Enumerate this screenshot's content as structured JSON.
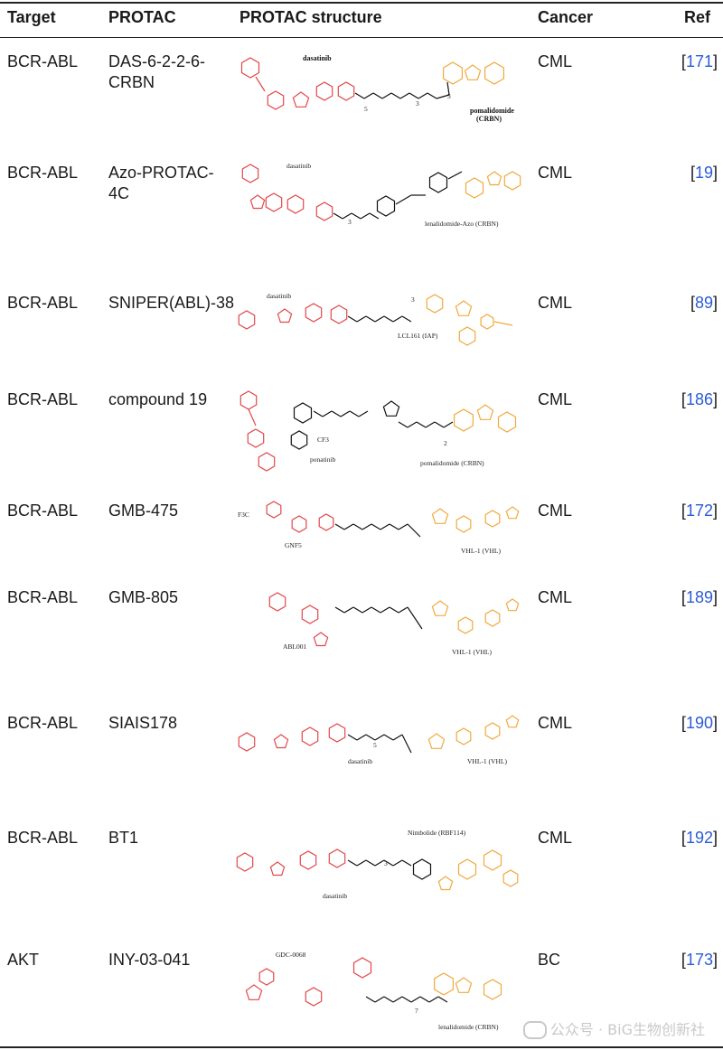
{
  "columns": {
    "target": "Target",
    "protac": "PROTAC",
    "structure": "PROTAC structure",
    "cancer": "Cancer",
    "ref": "Ref"
  },
  "rows": [
    {
      "target": "BCR-ABL",
      "protac_lines": [
        "DAS-6-2-2-6-",
        "CRBN"
      ],
      "cancer": "CML",
      "ref": "171",
      "labels": {
        "warhead": "dasatinib",
        "e3": "pomalidomide",
        "e3b": "(CRBN)",
        "n1": "5",
        "n2": "3",
        "n3": "3"
      }
    },
    {
      "target": "BCR-ABL",
      "protac_lines": [
        "Azo-PROTAC-",
        "4C"
      ],
      "cancer": "CML",
      "ref": "19",
      "labels": {
        "warhead": "dasatinib",
        "e3": "lenalidomide-Azo (CRBN)",
        "n1": "3"
      }
    },
    {
      "target": "BCR-ABL",
      "protac_lines": [
        "SNIPER(ABL)-38"
      ],
      "cancer": "CML",
      "ref": "89",
      "labels": {
        "warhead": "dasatinib",
        "e3": "LCL161 (IAP)",
        "n1": "3"
      }
    },
    {
      "target": "BCR-ABL",
      "protac_lines": [
        "compound 19"
      ],
      "cancer": "CML",
      "ref": "186",
      "labels": {
        "warhead": "ponatinib",
        "e3": "pomalidomide (CRBN)",
        "cf3": "CF3",
        "n1": "2"
      }
    },
    {
      "target": "BCR-ABL",
      "protac_lines": [
        "GMB-475"
      ],
      "cancer": "CML",
      "ref": "172",
      "labels": {
        "warhead": "GNF5",
        "e3": "VHL-1 (VHL)",
        "f3co": "F3C"
      }
    },
    {
      "target": "BCR-ABL",
      "protac_lines": [
        "GMB-805"
      ],
      "cancer": "CML",
      "ref": "189",
      "labels": {
        "warhead": "ABL001",
        "e3": "VHL-1 (VHL)"
      }
    },
    {
      "target": "BCR-ABL",
      "protac_lines": [
        "SIAIS178"
      ],
      "cancer": "CML",
      "ref": "190",
      "labels": {
        "warhead": "dasatinib",
        "e3": "VHL-1 (VHL)",
        "n1": "5"
      }
    },
    {
      "target": "BCR-ABL",
      "protac_lines": [
        "BT1"
      ],
      "cancer": "CML",
      "ref": "192",
      "labels": {
        "warhead": "dasatinib",
        "e3": "Nimbolide (RBF114)",
        "n1": "3"
      }
    },
    {
      "target": "AKT",
      "protac_lines": [
        "INY-03-041"
      ],
      "cancer": "BC",
      "ref": "173",
      "labels": {
        "warhead": "GDC-0068",
        "e3": "lenalidomide (CRBN)",
        "n1": "7"
      }
    }
  ],
  "watermark": "公众号 · BiG生物创新社",
  "colors": {
    "warhead": "#e2474a",
    "e3": "#f0a93e",
    "linker": "#111111",
    "link": "#2a5bd7"
  }
}
